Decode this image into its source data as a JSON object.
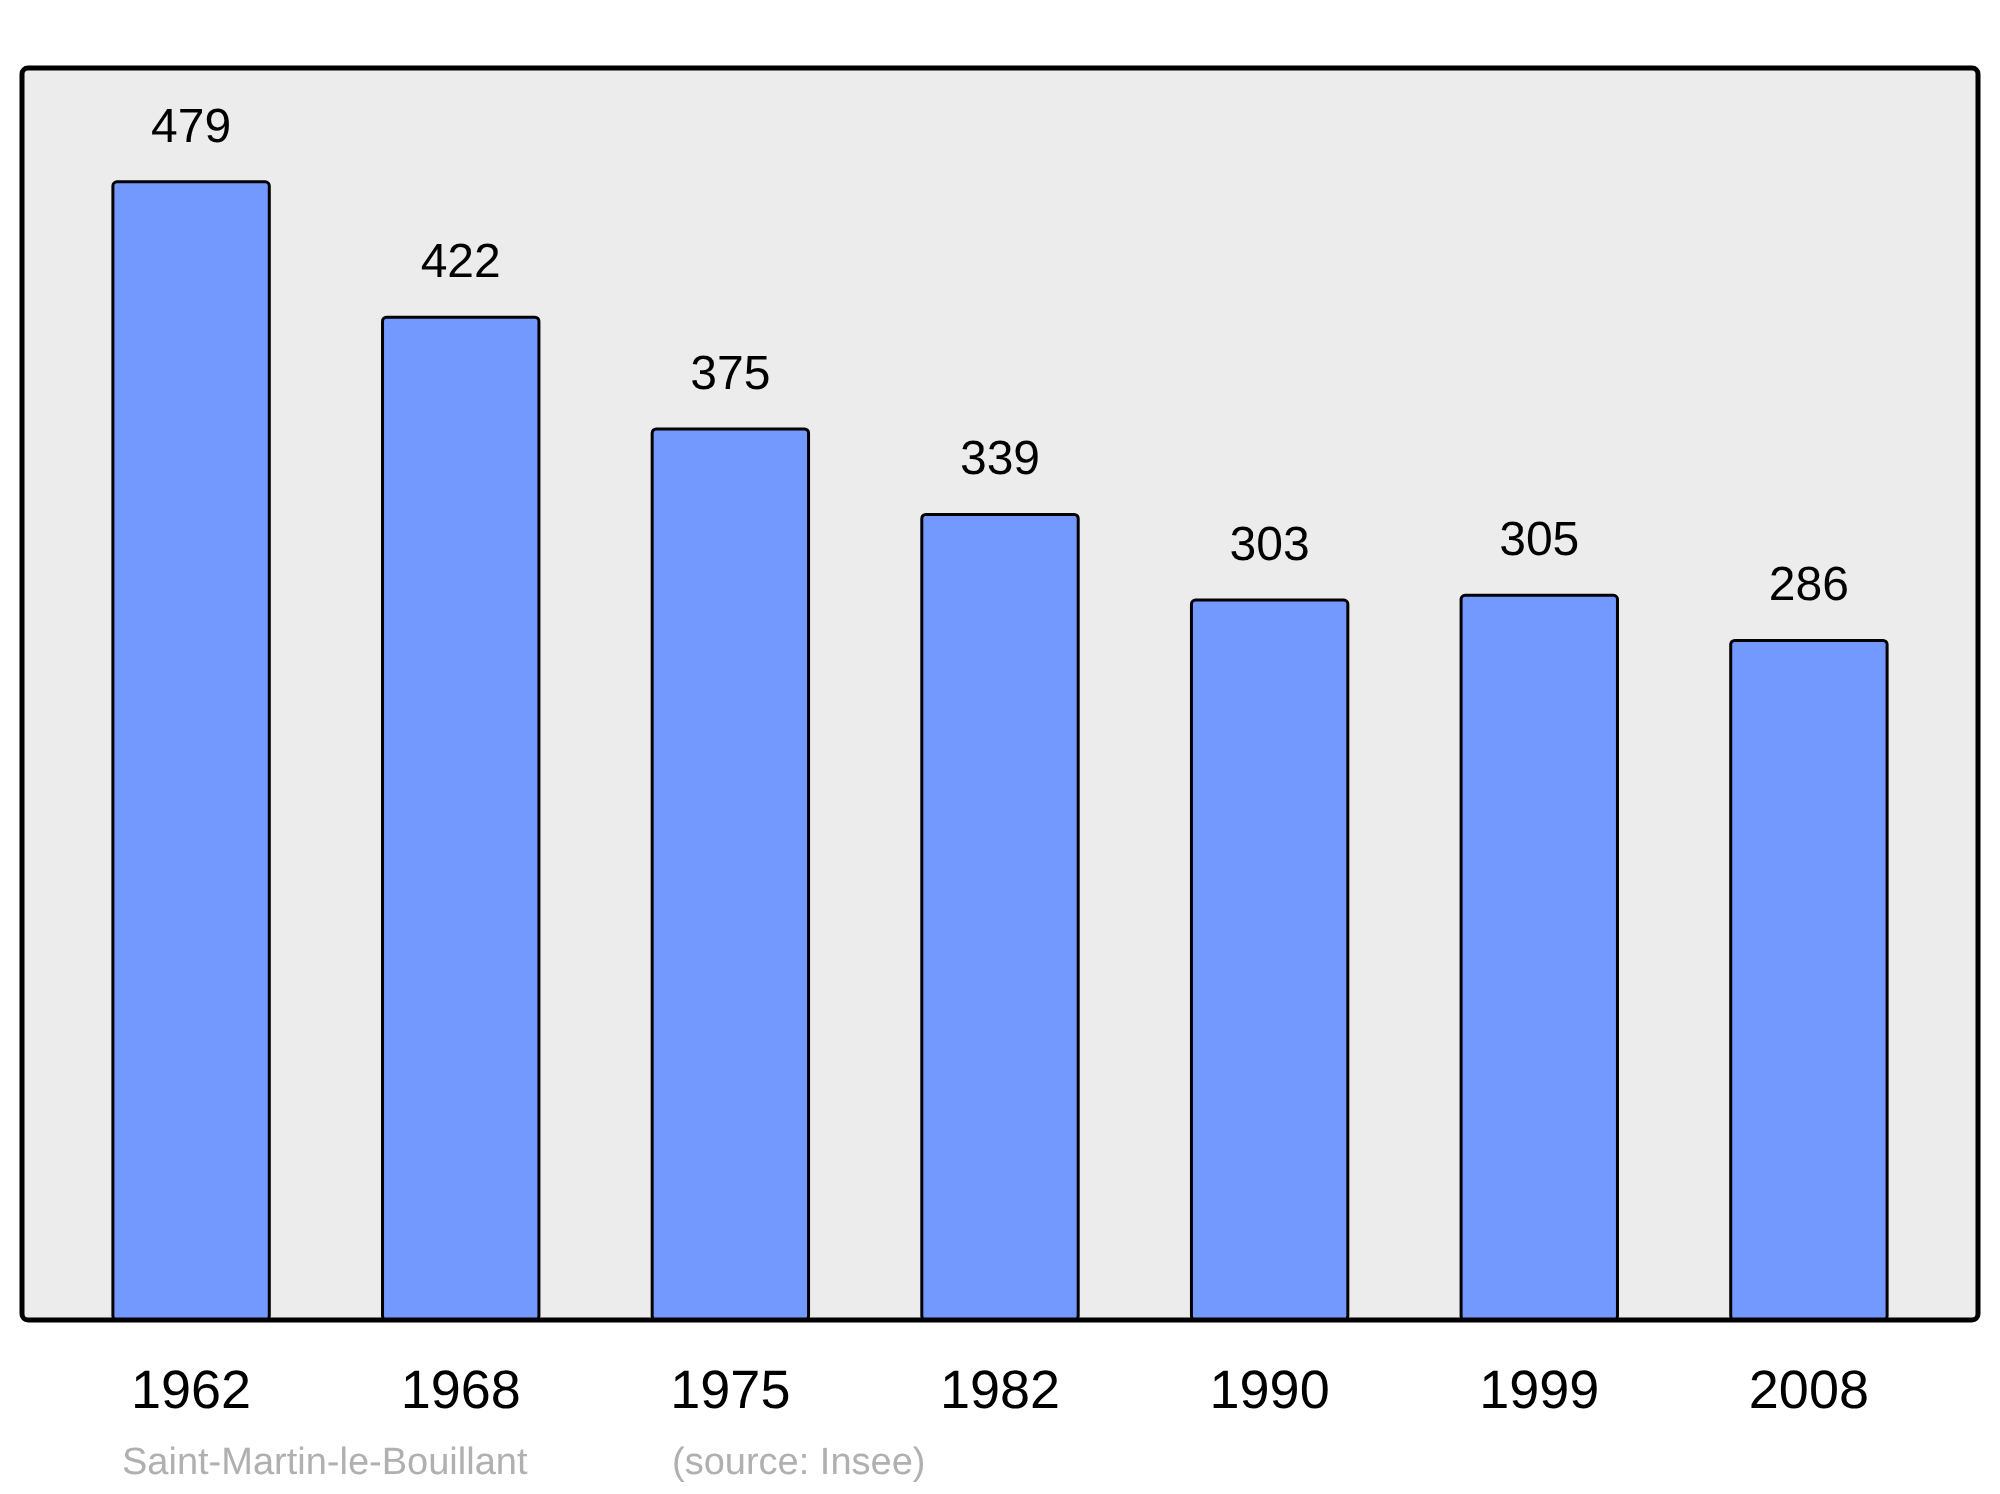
{
  "chart_data": {
    "type": "bar",
    "categories": [
      "1962",
      "1968",
      "1975",
      "1982",
      "1990",
      "1999",
      "2008"
    ],
    "values": [
      479,
      422,
      375,
      339,
      303,
      305,
      286
    ],
    "color": "#7399ff",
    "data_labels": true,
    "annotations": [
      "Saint-Martin-le-Bouillant",
      "(source: Insee)"
    ]
  }
}
